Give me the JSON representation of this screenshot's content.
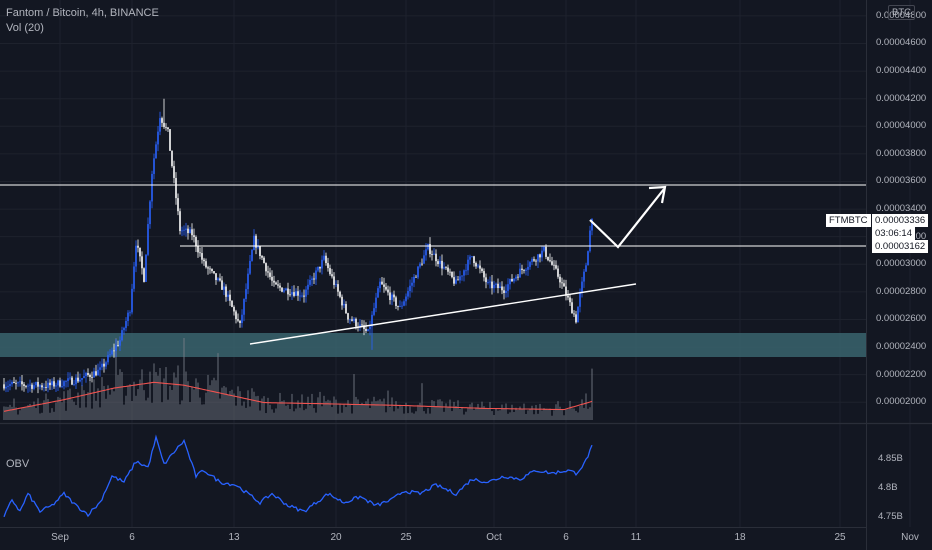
{
  "header": {
    "title": "Fantom / Bitcoin, 4h, BINANCE",
    "vol_label": "Vol (20)",
    "obv_label": "OBV",
    "currency": "BTC"
  },
  "price_tags": {
    "symbol": "FTMBTC",
    "last_price": "0.00003336",
    "countdown": "03:06:14",
    "line_price": "0.00003162"
  },
  "colors": {
    "background": "#131722",
    "up_candle": "#2962ff",
    "down_candle": "#ffffff",
    "volume_ma": "#ef5350",
    "obv_line": "#2962ff",
    "support_zone": "#3b6670",
    "drawing": "#ffffff"
  },
  "chart_data": [
    {
      "type": "candlestick",
      "name": "FTMBTC 4h",
      "y_ticks": [
        "0.00004800",
        "0.00004600",
        "0.00004400",
        "0.00004200",
        "0.00004000",
        "0.00003800",
        "0.00003600",
        "0.00003400",
        "0.00003200",
        "0.00003000",
        "0.00002800",
        "0.00002600",
        "0.00002400",
        "0.00002200",
        "0.00002000"
      ],
      "x_ticks": [
        "Sep",
        "6",
        "13",
        "20",
        "25",
        "Oct",
        "6",
        "11",
        "18",
        "25",
        "Nov"
      ],
      "ylim": [
        1.915e-05,
        4.85e-05
      ],
      "anchor_path": [
        [
          0,
          2.13e-05
        ],
        [
          22,
          2.12e-05
        ],
        [
          38,
          2.17e-05
        ],
        [
          48,
          2.23e-05
        ],
        [
          58,
          2.45e-05
        ],
        [
          63,
          2.68e-05
        ],
        [
          66,
          3.16e-05
        ],
        [
          70,
          2.9e-05
        ],
        [
          74,
          3.67e-05
        ],
        [
          78,
          4.08e-05
        ],
        [
          82,
          3.95e-05
        ],
        [
          88,
          3.25e-05
        ],
        [
          94,
          3.22e-05
        ],
        [
          100,
          3e-05
        ],
        [
          110,
          2.82e-05
        ],
        [
          118,
          2.55e-05
        ],
        [
          125,
          3.18e-05
        ],
        [
          135,
          2.84e-05
        ],
        [
          150,
          2.78e-05
        ],
        [
          160,
          3.04e-05
        ],
        [
          172,
          2.62e-05
        ],
        [
          182,
          2.5e-05
        ],
        [
          188,
          2.86e-05
        ],
        [
          198,
          2.68e-05
        ],
        [
          212,
          3.12e-05
        ],
        [
          226,
          2.86e-05
        ],
        [
          234,
          3.06e-05
        ],
        [
          242,
          2.85e-05
        ],
        [
          250,
          2.82e-05
        ],
        [
          258,
          2.95e-05
        ],
        [
          270,
          3.1e-05
        ],
        [
          278,
          2.89e-05
        ],
        [
          286,
          2.6e-05
        ],
        [
          288,
          2.78e-05
        ],
        [
          291,
          3e-05
        ],
        [
          294,
          3.36e-05
        ]
      ],
      "extremes": {
        "high": 4.2e-05,
        "high_index": 80,
        "low": 2.38e-05,
        "low_index": 184
      }
    },
    {
      "type": "bar",
      "name": "Vol (20)",
      "overlay": "moving-average",
      "levels": [
        [
          0,
          0.15
        ],
        [
          30,
          0.35
        ],
        [
          55,
          0.55
        ],
        [
          75,
          0.65
        ],
        [
          90,
          0.6
        ],
        [
          110,
          0.45
        ],
        [
          130,
          0.3
        ],
        [
          160,
          0.28
        ],
        [
          200,
          0.25
        ],
        [
          240,
          0.2
        ],
        [
          280,
          0.18
        ],
        [
          294,
          0.32
        ]
      ]
    },
    {
      "type": "line",
      "name": "OBV",
      "y_ticks": [
        "4.85B",
        "4.8B",
        "4.75B"
      ],
      "ylim": [
        4.742,
        4.89
      ],
      "anchor_path": [
        [
          0,
          4.75
        ],
        [
          4,
          4.78
        ],
        [
          8,
          4.76
        ],
        [
          12,
          4.79
        ],
        [
          18,
          4.76
        ],
        [
          24,
          4.77
        ],
        [
          30,
          4.79
        ],
        [
          36,
          4.77
        ],
        [
          42,
          4.755
        ],
        [
          48,
          4.775
        ],
        [
          54,
          4.82
        ],
        [
          60,
          4.81
        ],
        [
          66,
          4.845
        ],
        [
          72,
          4.835
        ],
        [
          76,
          4.885
        ],
        [
          80,
          4.84
        ],
        [
          86,
          4.865
        ],
        [
          90,
          4.88
        ],
        [
          96,
          4.82
        ],
        [
          100,
          4.83
        ],
        [
          108,
          4.81
        ],
        [
          116,
          4.805
        ],
        [
          122,
          4.79
        ],
        [
          128,
          4.775
        ],
        [
          134,
          4.79
        ],
        [
          142,
          4.77
        ],
        [
          150,
          4.76
        ],
        [
          156,
          4.775
        ],
        [
          162,
          4.79
        ],
        [
          170,
          4.775
        ],
        [
          178,
          4.785
        ],
        [
          186,
          4.77
        ],
        [
          194,
          4.78
        ],
        [
          200,
          4.795
        ],
        [
          208,
          4.79
        ],
        [
          216,
          4.805
        ],
        [
          226,
          4.79
        ],
        [
          234,
          4.815
        ],
        [
          242,
          4.81
        ],
        [
          250,
          4.82
        ],
        [
          258,
          4.815
        ],
        [
          266,
          4.83
        ],
        [
          274,
          4.825
        ],
        [
          282,
          4.83
        ],
        [
          286,
          4.825
        ],
        [
          290,
          4.84
        ],
        [
          294,
          4.87
        ]
      ]
    }
  ]
}
